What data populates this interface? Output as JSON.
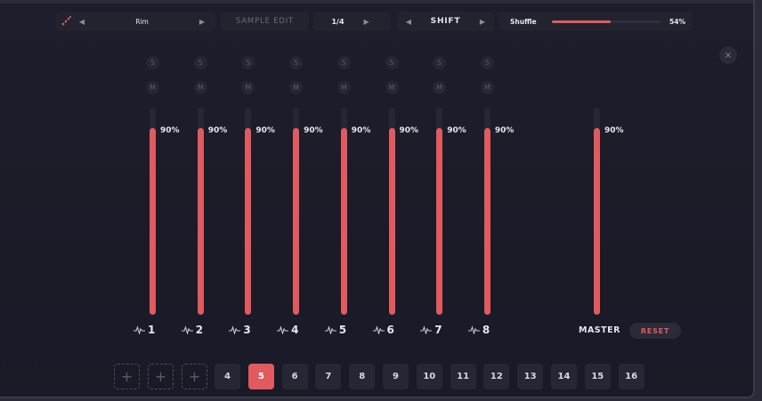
{
  "toolbar": {
    "instrument": "Rim",
    "sample_edit_label": "SAMPLE EDIT",
    "division": "1/4",
    "mode_label": "SHIFT",
    "shuffle_label": "Shuffle",
    "shuffle_value_text": "54%",
    "shuffle_level": 0.54
  },
  "close_glyph": "×",
  "solo_label": "S",
  "mute_label": "M",
  "channels": [
    {
      "label": "1",
      "volume_text": "90%",
      "volume": 0.9
    },
    {
      "label": "2",
      "volume_text": "90%",
      "volume": 0.9
    },
    {
      "label": "3",
      "volume_text": "90%",
      "volume": 0.9
    },
    {
      "label": "4",
      "volume_text": "90%",
      "volume": 0.9
    },
    {
      "label": "5",
      "volume_text": "90%",
      "volume": 0.9
    },
    {
      "label": "6",
      "volume_text": "90%",
      "volume": 0.9
    },
    {
      "label": "7",
      "volume_text": "90%",
      "volume": 0.9
    },
    {
      "label": "8",
      "volume_text": "90%",
      "volume": 0.9
    }
  ],
  "master": {
    "label": "MASTER",
    "volume_text": "90%",
    "volume": 0.9,
    "reset_label": "RESET"
  },
  "pads": {
    "add_glyph": "+",
    "add_count": 3,
    "items": [
      "4",
      "5",
      "6",
      "7",
      "8",
      "9",
      "10",
      "11",
      "12",
      "13",
      "14",
      "15",
      "16"
    ],
    "active": "5"
  },
  "colors": {
    "accent": "#e05a5e",
    "background": "#1c1c2a",
    "control": "#262634"
  }
}
